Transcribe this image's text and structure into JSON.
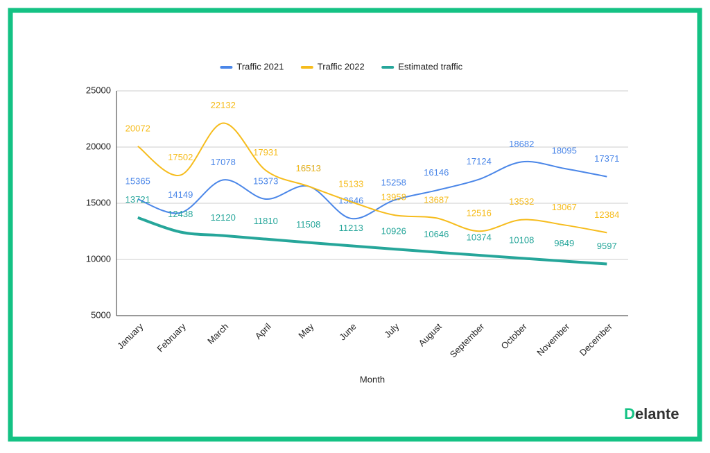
{
  "chart_data": {
    "type": "line",
    "x_label": "Month",
    "categories": [
      "January",
      "February",
      "March",
      "April",
      "May",
      "June",
      "July",
      "August",
      "September",
      "October",
      "November",
      "December"
    ],
    "series": [
      {
        "name": "Traffic 2021",
        "color": "#4a86e8",
        "width": 2,
        "values": [
          15365,
          14149,
          17078,
          15373,
          16513,
          13646,
          15258,
          16146,
          17124,
          18682,
          18095,
          17371
        ]
      },
      {
        "name": "Traffic 2022",
        "color": "#f6bc1c",
        "width": 2,
        "values": [
          20072,
          17502,
          22132,
          17931,
          16513,
          15133,
          13958,
          13687,
          12516,
          13532,
          13067,
          12384
        ]
      },
      {
        "name": "Estimated traffic",
        "color": "#26a69a",
        "width": 4,
        "values": [
          13721,
          12438,
          12120,
          11810,
          11508,
          11213,
          10926,
          10646,
          10374,
          10108,
          9849,
          9597
        ]
      }
    ],
    "ylim": [
      5000,
      25000
    ],
    "yticks": [
      5000,
      10000,
      15000,
      20000,
      25000
    ],
    "grid": true,
    "legend": "top",
    "smooth": true,
    "data_labels": true
  },
  "logo": {
    "prefix": "D",
    "rest": "elante"
  }
}
